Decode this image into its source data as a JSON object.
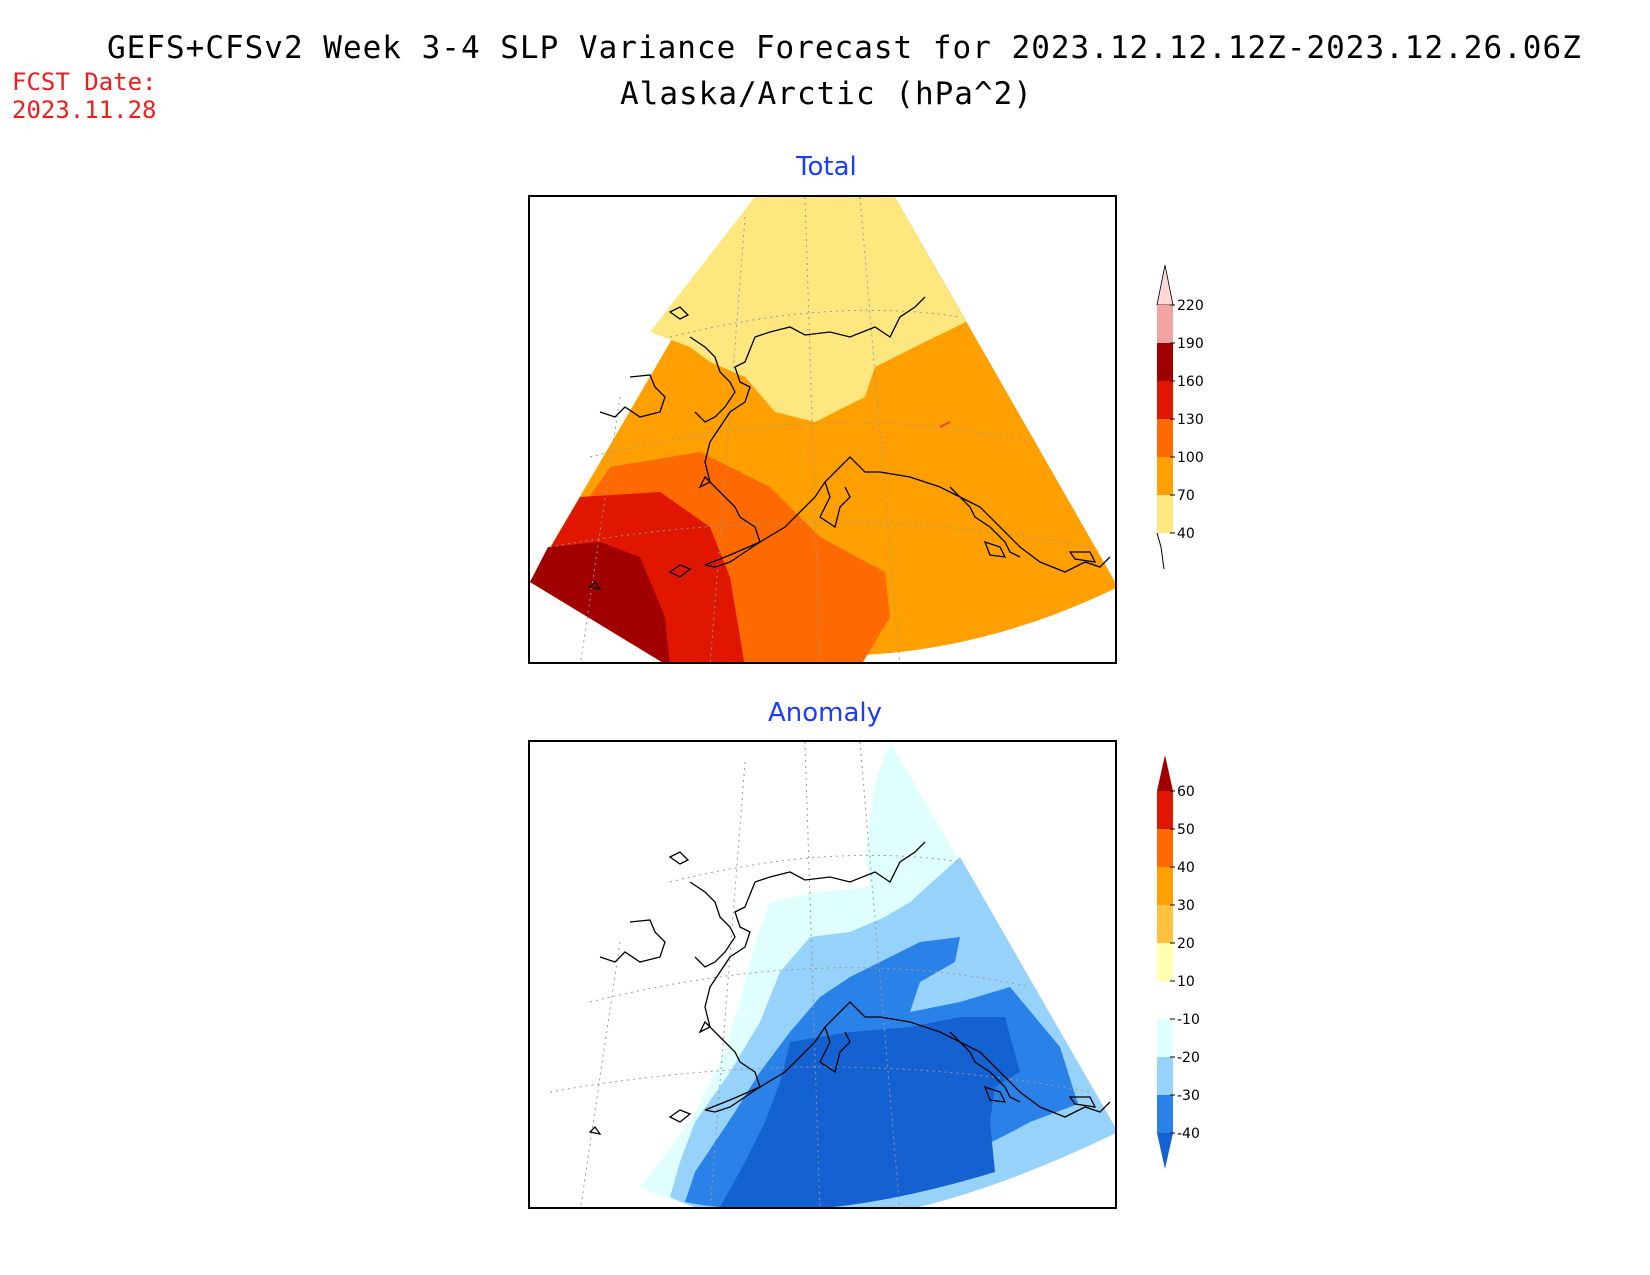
{
  "title_line1": "GEFS+CFSv2 Week 3-4 SLP Variance Forecast for 2023.12.12.12Z-2023.12.26.06Z",
  "title_line2": "Alaska/Arctic (hPa^2)",
  "fcst_date_label": "FCST Date:",
  "fcst_date_value": "2023.11.28",
  "panels": [
    {
      "title": "Total",
      "legend": {
        "levels": [
          "220",
          "190",
          "160",
          "130",
          "100",
          "70",
          "40"
        ],
        "colors": [
          "#ffd7d7",
          "#f3a3a3",
          "#a00000",
          "#e01600",
          "#ff6a00",
          "#ffa000",
          "#ffe77f"
        ]
      },
      "region_colors": {
        "north": "#ffe77f",
        "central": "#ffa000",
        "southwest_1": "#ff6a00",
        "southwest_2": "#e01600",
        "southwest_3": "#a00000"
      }
    },
    {
      "title": "Anomaly",
      "legend": {
        "levels": [
          "60",
          "50",
          "40",
          "30",
          "20",
          "10",
          "-10",
          "-20",
          "-30",
          "-40"
        ],
        "colors": [
          "#a00000",
          "#e01600",
          "#ff6a00",
          "#ffa000",
          "#ffc23f",
          "#ffffb0",
          "#ffffff",
          "#e0ffff",
          "#96d2fa",
          "#2a82e8",
          "#1462d2"
        ]
      },
      "region_colors": {
        "neutral": "#ffffff",
        "light": "#e0ffff",
        "medium": "#96d2fa",
        "strong": "#2a82e8",
        "strongest": "#1462d2"
      }
    }
  ]
}
